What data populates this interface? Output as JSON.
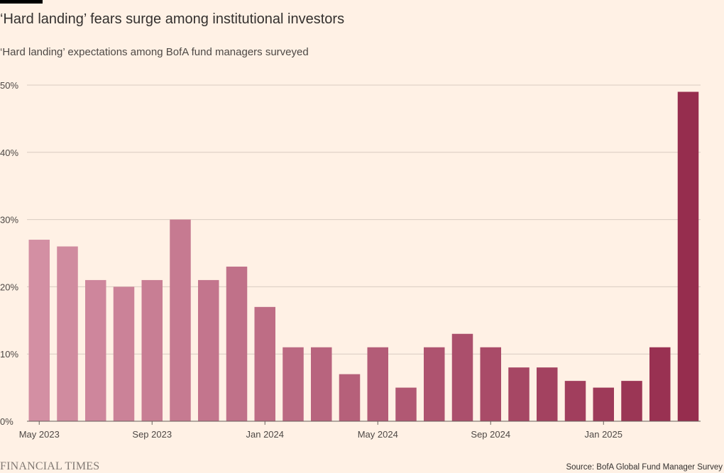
{
  "header": {
    "title": "‘Hard landing’ fears surge among institutional investors",
    "subtitle": "‘Hard landing’ expectations among BofA fund managers surveyed"
  },
  "footer": {
    "logo": "FINANCIAL TIMES",
    "source": "Source: BofA Global Fund Manager Survey"
  },
  "chart_data": {
    "type": "bar",
    "title": "‘Hard landing’ fears surge among institutional investors",
    "subtitle": "‘Hard landing’ expectations among BofA fund managers surveyed",
    "categories": [
      "May 2023",
      "Jun 2023",
      "Jul 2023",
      "Aug 2023",
      "Sep 2023",
      "Oct 2023",
      "Nov 2023",
      "Dec 2023",
      "Jan 2024",
      "Feb 2024",
      "Mar 2024",
      "Apr 2024",
      "May 2024",
      "Jun 2024",
      "Jul 2024",
      "Aug 2024",
      "Sep 2024",
      "Oct 2024",
      "Nov 2024",
      "Dec 2024",
      "Jan 2025",
      "Feb 2025",
      "Mar 2025",
      "Apr 2025"
    ],
    "values": [
      27,
      26,
      21,
      20,
      21,
      30,
      21,
      23,
      17,
      11,
      11,
      7,
      11,
      5,
      11,
      13,
      11,
      8,
      8,
      6,
      5,
      6,
      11,
      49
    ],
    "x_tick_labels": [
      "May 2023",
      "Sep 2023",
      "Jan 2024",
      "May 2024",
      "Sep 2024",
      "Jan 2025"
    ],
    "x_tick_indices": [
      0,
      4,
      8,
      12,
      16,
      20
    ],
    "y_ticks": [
      0,
      10,
      20,
      30,
      40,
      50
    ],
    "y_tick_labels": [
      "0%",
      "10%",
      "20%",
      "30%",
      "40%",
      "50%"
    ],
    "ylim": [
      0,
      50
    ],
    "grid": true,
    "color_start": "#d38fa3",
    "color_end": "#962d4e",
    "grid_color": "#d8cbc1",
    "axis_color": "#66605c",
    "source": "Source: BofA Global Fund Manager Survey"
  }
}
